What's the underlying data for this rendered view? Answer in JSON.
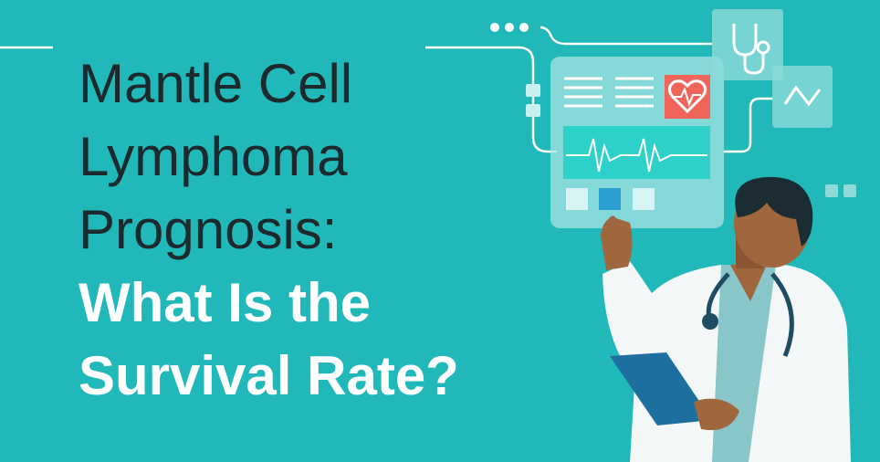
{
  "headline": {
    "lines": [
      "Mantle Cell",
      "Lymphoma",
      "Prognosis:"
    ]
  },
  "subheadline": {
    "lines": [
      "What Is the",
      "Survival Rate?"
    ]
  }
}
